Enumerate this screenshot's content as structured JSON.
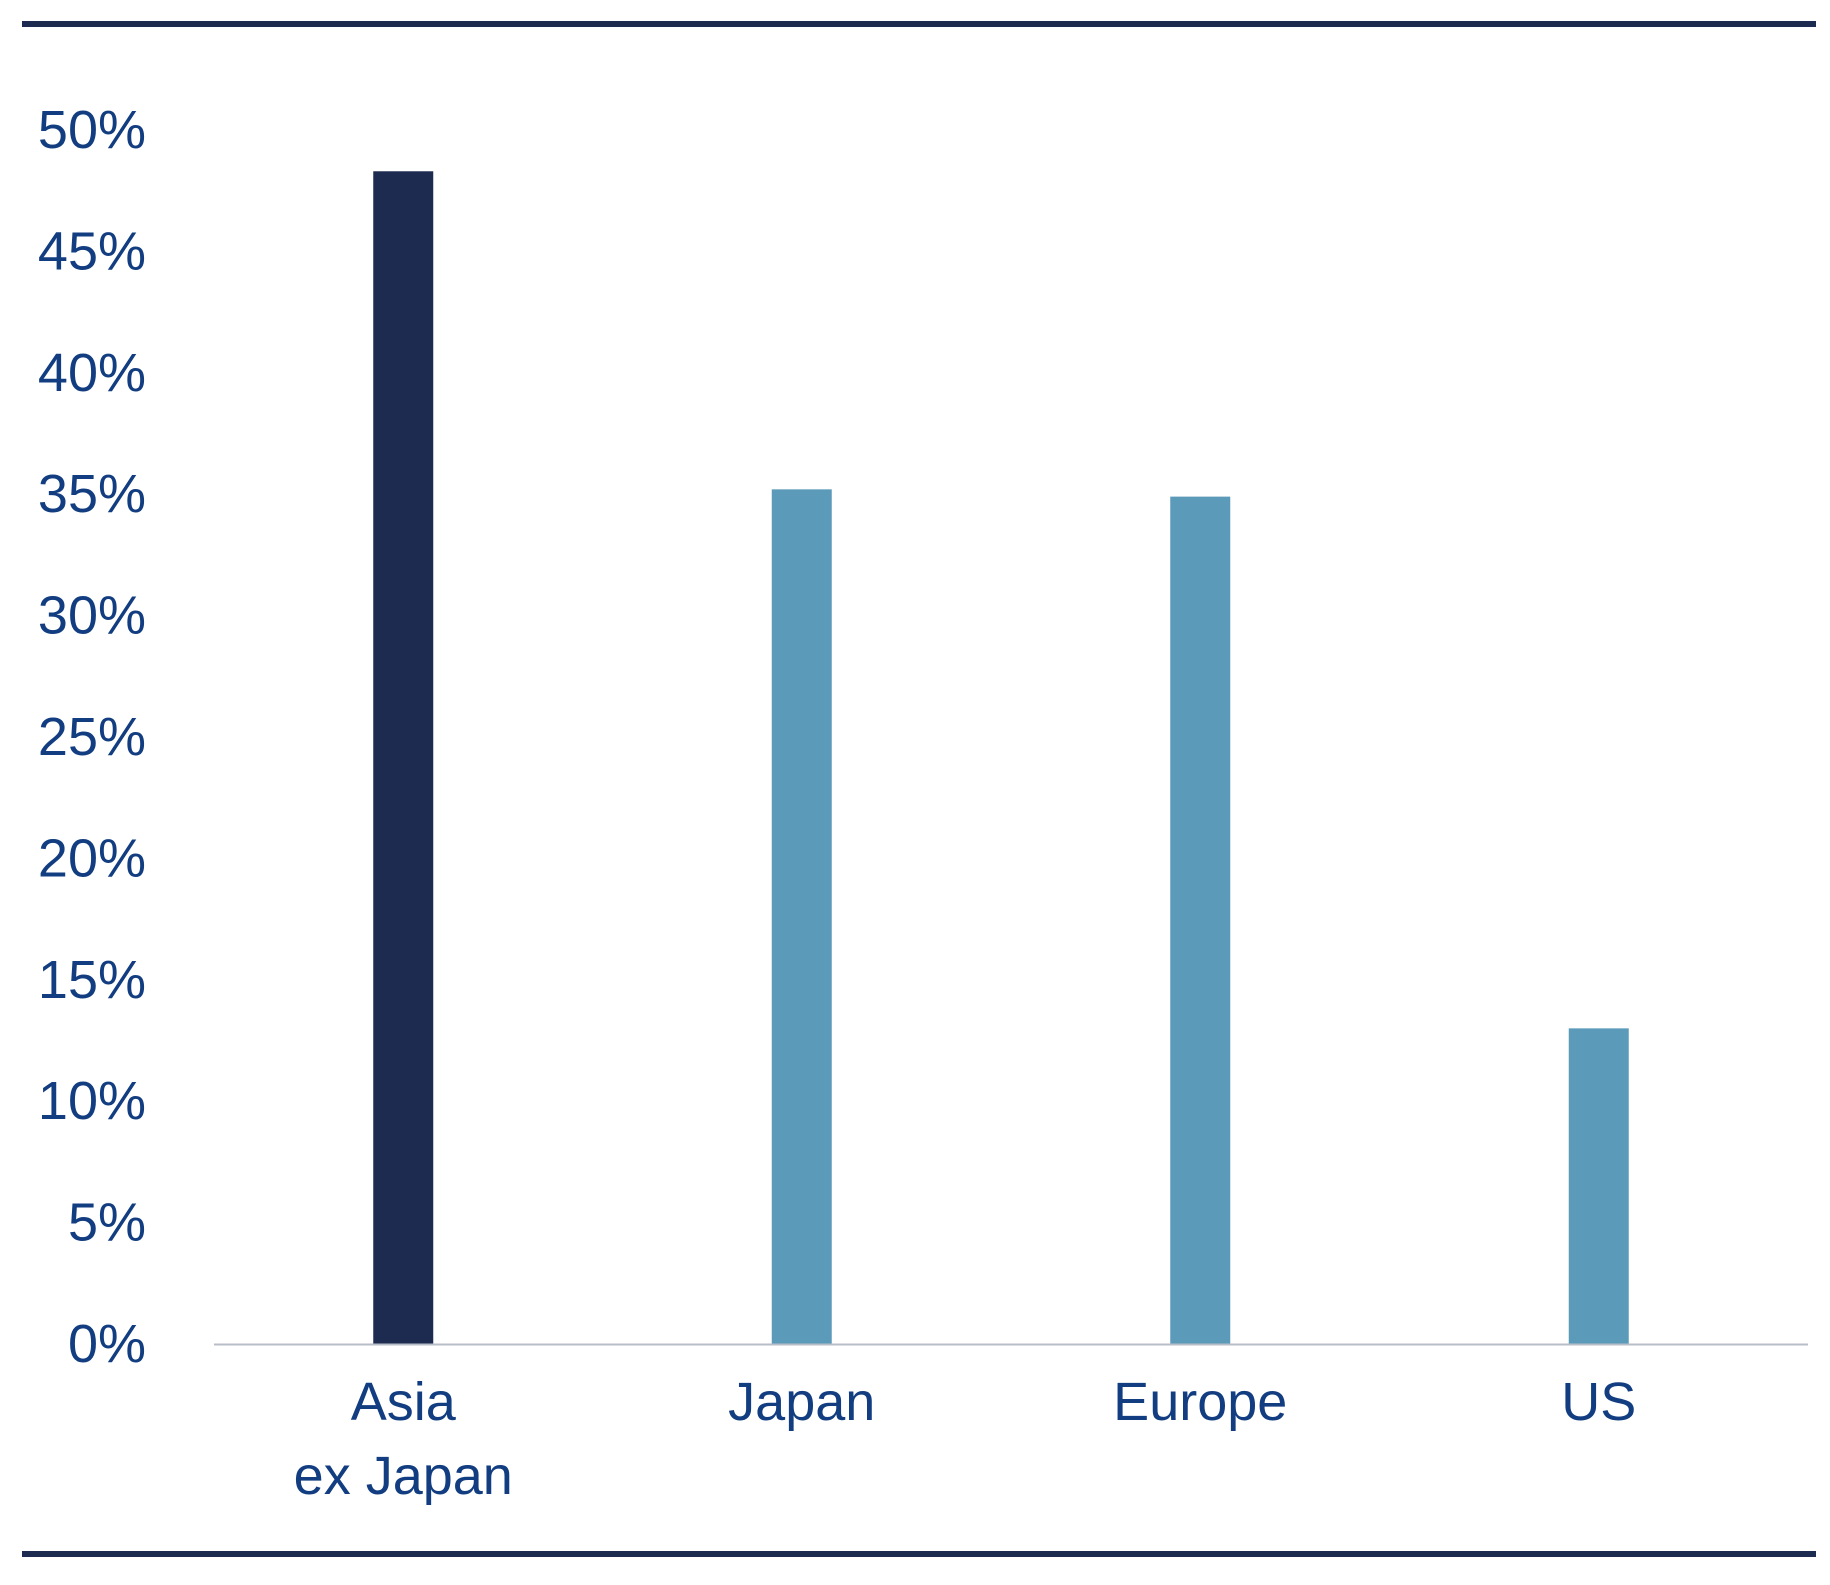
{
  "chart_data": {
    "type": "bar",
    "title": "",
    "xlabel": "",
    "ylabel": "",
    "categories": [
      [
        "Asia",
        "ex Japan"
      ],
      [
        "Japan"
      ],
      [
        "Europe"
      ],
      [
        "US"
      ]
    ],
    "values": [
      48.3,
      35.2,
      34.9,
      13.0
    ],
    "bar_colors": [
      "#1d2b50",
      "#5b9ab8",
      "#5b9ab8",
      "#5b9ab8"
    ],
    "ylim": [
      0,
      50
    ],
    "yticks": [
      0,
      5,
      10,
      15,
      20,
      25,
      30,
      35,
      40,
      45,
      50
    ],
    "ytick_labels": [
      "0%",
      "5%",
      "10%",
      "15%",
      "20%",
      "25%",
      "30%",
      "35%",
      "40%",
      "45%",
      "50%"
    ],
    "grid": false,
    "legend": "none"
  },
  "colors": {
    "text": "#123d80",
    "frame_rule": "#1d2b50",
    "baseline": "#b8bec8"
  }
}
